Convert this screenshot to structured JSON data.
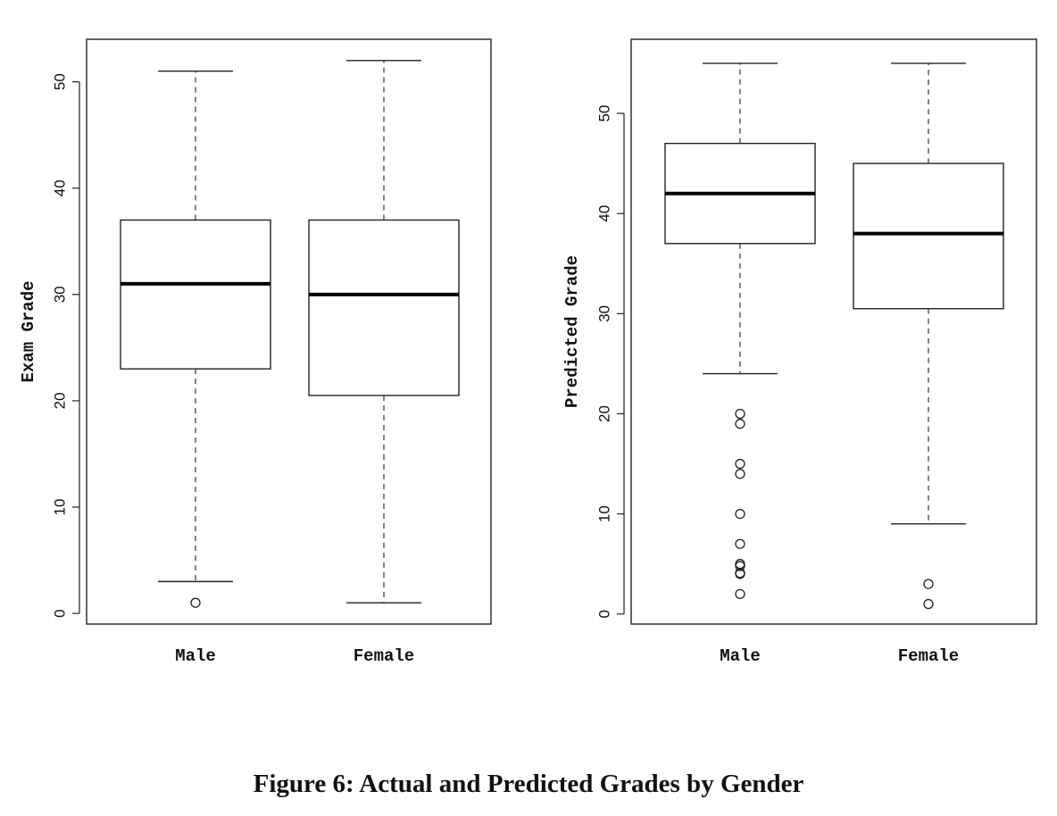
{
  "caption": "Figure 6: Actual and Predicted Grades by Gender",
  "chart_data": [
    {
      "type": "boxplot",
      "ylabel": "Exam Grade",
      "ylim": [
        -1,
        54
      ],
      "yticks": [
        0,
        10,
        20,
        30,
        40,
        50
      ],
      "categories": [
        "Male",
        "Female"
      ],
      "boxes": [
        {
          "category": "Male",
          "whisker_low": 3,
          "q1": 23,
          "median": 31,
          "q3": 37,
          "whisker_high": 51,
          "outliers": [
            1
          ]
        },
        {
          "category": "Female",
          "whisker_low": 1,
          "q1": 20.5,
          "median": 30,
          "q3": 37,
          "whisker_high": 52,
          "outliers": []
        }
      ]
    },
    {
      "type": "boxplot",
      "ylabel": "Predicted Grade",
      "ylim": [
        -1,
        57.4
      ],
      "yticks": [
        0,
        10,
        20,
        30,
        40,
        50
      ],
      "categories": [
        "Male",
        "Female"
      ],
      "boxes": [
        {
          "category": "Male",
          "whisker_low": 24,
          "q1": 37,
          "median": 42,
          "q3": 47,
          "whisker_high": 55,
          "outliers": [
            20,
            19,
            15,
            14,
            10,
            7,
            5,
            4.8,
            4.1,
            4,
            2
          ]
        },
        {
          "category": "Female",
          "whisker_low": 9,
          "q1": 30.5,
          "median": 38,
          "q3": 45,
          "whisker_high": 55,
          "outliers": [
            3,
            1
          ]
        }
      ]
    }
  ]
}
